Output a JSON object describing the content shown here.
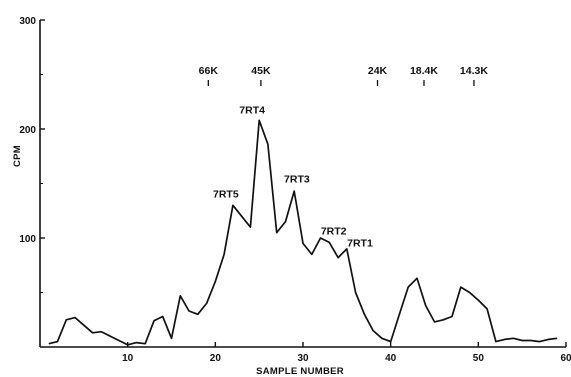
{
  "chart_data": {
    "type": "line",
    "xlabel": "SAMPLE NUMBER",
    "ylabel": "CPM",
    "xlim": [
      0,
      60
    ],
    "ylim": [
      0,
      300
    ],
    "xticks": [
      "10",
      "20",
      "30",
      "40",
      "50",
      "60"
    ],
    "yticks": [
      "100",
      "200",
      "300"
    ],
    "grid": false,
    "series": [
      {
        "points": [
          [
            1,
            3
          ],
          [
            2,
            5
          ],
          [
            3,
            25
          ],
          [
            4,
            27
          ],
          [
            5,
            20
          ],
          [
            6,
            13
          ],
          [
            7,
            14
          ],
          [
            8,
            10
          ],
          [
            9,
            6
          ],
          [
            10,
            2
          ],
          [
            11,
            4
          ],
          [
            12,
            3
          ],
          [
            13,
            24
          ],
          [
            14,
            28
          ],
          [
            15,
            8
          ],
          [
            16,
            47
          ],
          [
            17,
            33
          ],
          [
            18,
            30
          ],
          [
            19,
            40
          ],
          [
            20,
            60
          ],
          [
            21,
            85
          ],
          [
            22,
            130
          ],
          [
            23,
            120
          ],
          [
            24,
            110
          ],
          [
            25,
            208
          ],
          [
            26,
            186
          ],
          [
            27,
            105
          ],
          [
            28,
            115
          ],
          [
            29,
            143
          ],
          [
            30,
            95
          ],
          [
            31,
            85
          ],
          [
            32,
            100
          ],
          [
            33,
            96
          ],
          [
            34,
            82
          ],
          [
            35,
            90
          ],
          [
            36,
            50
          ],
          [
            37,
            30
          ],
          [
            38,
            15
          ],
          [
            39,
            8
          ],
          [
            40,
            5
          ],
          [
            41,
            30
          ],
          [
            42,
            55
          ],
          [
            43,
            63
          ],
          [
            44,
            38
          ],
          [
            45,
            23
          ],
          [
            46,
            25
          ],
          [
            47,
            28
          ],
          [
            48,
            55
          ],
          [
            49,
            50
          ],
          [
            50,
            43
          ],
          [
            51,
            35
          ],
          [
            52,
            5
          ],
          [
            53,
            7
          ],
          [
            54,
            8
          ],
          [
            55,
            6
          ],
          [
            56,
            6
          ],
          [
            57,
            5
          ],
          [
            58,
            7
          ],
          [
            59,
            8
          ]
        ]
      }
    ],
    "annotations": [
      {
        "text": "7RT5",
        "x": 21.2,
        "y": 137
      },
      {
        "text": "7RT4",
        "x": 24.2,
        "y": 214
      },
      {
        "text": "7RT3",
        "x": 29.3,
        "y": 151
      },
      {
        "text": "7RT2",
        "x": 33.5,
        "y": 103
      },
      {
        "text": "7RT1",
        "x": 36.5,
        "y": 92
      }
    ],
    "mw_markers": [
      {
        "text": "66K",
        "x": 19.2
      },
      {
        "text": "45K",
        "x": 25.2
      },
      {
        "text": "24K",
        "x": 38.5
      },
      {
        "text": "18.4K",
        "x": 43.8
      },
      {
        "text": "14.3K",
        "x": 49.5
      }
    ]
  }
}
